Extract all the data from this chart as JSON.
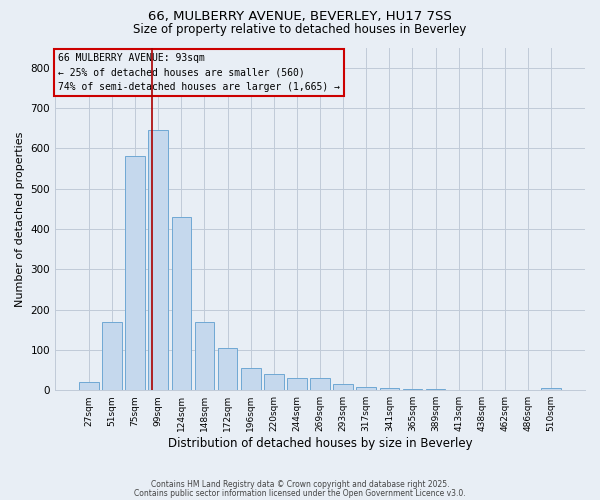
{
  "title_line1": "66, MULBERRY AVENUE, BEVERLEY, HU17 7SS",
  "title_line2": "Size of property relative to detached houses in Beverley",
  "xlabel": "Distribution of detached houses by size in Beverley",
  "ylabel": "Number of detached properties",
  "bar_labels": [
    "27sqm",
    "51sqm",
    "75sqm",
    "99sqm",
    "124sqm",
    "148sqm",
    "172sqm",
    "196sqm",
    "220sqm",
    "244sqm",
    "269sqm",
    "293sqm",
    "317sqm",
    "341sqm",
    "365sqm",
    "389sqm",
    "413sqm",
    "438sqm",
    "462sqm",
    "486sqm",
    "510sqm"
  ],
  "bar_values": [
    20,
    170,
    580,
    645,
    430,
    170,
    105,
    55,
    40,
    30,
    30,
    15,
    8,
    5,
    4,
    3,
    1,
    1,
    1,
    0,
    5
  ],
  "bar_color": "#c5d8ed",
  "bar_edgecolor": "#6fa8d4",
  "grid_color": "#c0cad8",
  "background_color": "#e8eef5",
  "vline_x": 2.75,
  "vline_color": "#aa0000",
  "annotation_text": "66 MULBERRY AVENUE: 93sqm\n← 25% of detached houses are smaller (560)\n74% of semi-detached houses are larger (1,665) →",
  "annotation_box_edgecolor": "#cc0000",
  "ylim": [
    0,
    850
  ],
  "yticks": [
    0,
    100,
    200,
    300,
    400,
    500,
    600,
    700,
    800
  ],
  "footnote1": "Contains HM Land Registry data © Crown copyright and database right 2025.",
  "footnote2": "Contains public sector information licensed under the Open Government Licence v3.0."
}
